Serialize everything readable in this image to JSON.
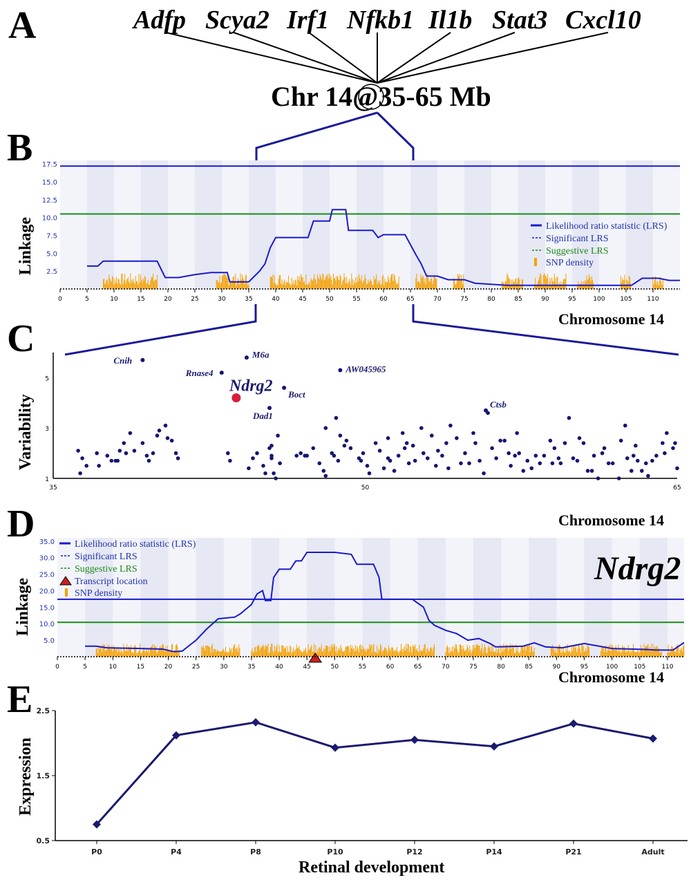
{
  "panel_letters": [
    "A",
    "B",
    "C",
    "D",
    "E"
  ],
  "top_genes": [
    "Adfp",
    "Scya2",
    "Irf1",
    "Nfkb1",
    "Il1b",
    "Stat3",
    "Cxcl10"
  ],
  "locus_label": "Chr 14@35-65 Mb",
  "colors": {
    "lrs_line": "#1a1acc",
    "significant": "#1a1acc",
    "suggestive": "#1a8a1a",
    "snp": "#f5a000",
    "band_dark": "#e6e8f4",
    "band_light": "#f3f4fa",
    "dots": "#151570",
    "highlight": "#d81e3c",
    "expression": "#1a1a70"
  },
  "chart_data": [
    {
      "type": "line",
      "panel": "B",
      "ylabel": "Linkage",
      "xlabel": "Chromosome 14",
      "xlim": [
        0,
        115
      ],
      "ylim": [
        0,
        18
      ],
      "x_ticks": [
        0,
        5,
        10,
        15,
        20,
        25,
        30,
        35,
        40,
        45,
        50,
        55,
        60,
        65,
        70,
        75,
        80,
        85,
        90,
        95,
        100,
        105,
        110
      ],
      "y_ticks": [
        "2.5",
        "5.0",
        "7.5",
        "10.0",
        "12.5",
        "15.0",
        "17.5"
      ],
      "significant_lrs": 17.2,
      "suggestive_lrs": 10.5,
      "legend": [
        "Likelihood ratio statistic (LRS)",
        "Significant LRS",
        "Suggestive LRS",
        "SNP density"
      ],
      "lrs_points": [
        [
          5,
          3.2
        ],
        [
          7,
          3.2
        ],
        [
          8,
          3.9
        ],
        [
          18,
          3.9
        ],
        [
          19.5,
          1.6
        ],
        [
          22,
          1.6
        ],
        [
          25,
          2
        ],
        [
          28,
          2.3
        ],
        [
          31,
          2.3
        ],
        [
          31.5,
          1
        ],
        [
          35,
          1
        ],
        [
          37,
          2.5
        ],
        [
          38,
          3.5
        ],
        [
          39,
          5.8
        ],
        [
          40,
          7.2
        ],
        [
          46,
          7.2
        ],
        [
          47,
          9.5
        ],
        [
          50,
          9.5
        ],
        [
          50.5,
          11.1
        ],
        [
          53,
          11.1
        ],
        [
          53.5,
          8.2
        ],
        [
          58,
          8.2
        ],
        [
          59,
          7.2
        ],
        [
          60,
          7.6
        ],
        [
          64,
          7.6
        ],
        [
          66,
          4.8
        ],
        [
          67,
          3.5
        ],
        [
          68,
          1.8
        ],
        [
          70,
          1.8
        ],
        [
          72,
          1.3
        ],
        [
          75,
          1.3
        ],
        [
          77,
          0.8
        ],
        [
          83,
          0.5
        ],
        [
          90,
          0.5
        ],
        [
          100,
          0.5
        ],
        [
          106,
          0.5
        ],
        [
          108,
          1.5
        ],
        [
          111,
          1.5
        ],
        [
          113,
          1.2
        ],
        [
          115,
          1.2
        ]
      ],
      "snp_blocks": [
        [
          8,
          18
        ],
        [
          29,
          35
        ],
        [
          39,
          63
        ],
        [
          66,
          70
        ],
        [
          73,
          75
        ],
        [
          82,
          86
        ],
        [
          88,
          94
        ],
        [
          96,
          99
        ],
        [
          104,
          106
        ],
        [
          110,
          112
        ]
      ]
    },
    {
      "type": "scatter",
      "panel": "C",
      "ylabel": "Variability",
      "xlabel": "Chromosome 14",
      "xlim": [
        35,
        65
      ],
      "ylim": [
        1,
        6
      ],
      "x_ticks": [
        "35",
        "50",
        "65"
      ],
      "y_ticks": [
        "1",
        "3",
        "5"
      ],
      "labeled_points": [
        {
          "name": "Cnih",
          "x": 39.3,
          "y": 5.7
        },
        {
          "name": "M6a",
          "x": 44.3,
          "y": 5.8
        },
        {
          "name": "Rnase4",
          "x": 43.1,
          "y": 5.2
        },
        {
          "name": "AW045965",
          "x": 48.8,
          "y": 5.3
        },
        {
          "name": "Ndrg2",
          "x": 43.8,
          "y": 4.2
        },
        {
          "name": "Boct",
          "x": 46.1,
          "y": 4.6
        },
        {
          "name": "Dad1",
          "x": 45.4,
          "y": 3.8
        },
        {
          "name": "Ctsb",
          "x": 55.8,
          "y": 3.7
        }
      ],
      "highlighted": "Ndrg2",
      "points": [
        [
          36.2,
          2.1
        ],
        [
          36.4,
          1.8
        ],
        [
          36.6,
          1.5
        ],
        [
          36.3,
          1.2
        ],
        [
          37.1,
          2.0
        ],
        [
          37.2,
          1.5
        ],
        [
          37.6,
          1.9
        ],
        [
          37.8,
          1.7
        ],
        [
          38.0,
          1.7
        ],
        [
          38.2,
          2.1
        ],
        [
          38.4,
          2.4
        ],
        [
          38.5,
          2.0
        ],
        [
          38.7,
          2.8
        ],
        [
          38.1,
          1.7
        ],
        [
          38.9,
          2.1
        ],
        [
          39.3,
          2.4
        ],
        [
          39.5,
          1.9
        ],
        [
          39.6,
          1.7
        ],
        [
          39.8,
          2.0
        ],
        [
          40.0,
          2.7
        ],
        [
          40.1,
          2.9
        ],
        [
          40.4,
          3.1
        ],
        [
          40.5,
          2.6
        ],
        [
          40.7,
          2.5
        ],
        [
          40.9,
          2.0
        ],
        [
          41.0,
          1.8
        ],
        [
          43.4,
          2.0
        ],
        [
          43.5,
          1.7
        ],
        [
          44.4,
          1.4
        ],
        [
          44.6,
          1.8
        ],
        [
          44.8,
          2.0
        ],
        [
          45.1,
          1.5
        ],
        [
          45.2,
          1.2
        ],
        [
          45.4,
          2.2
        ],
        [
          45.5,
          1.9
        ],
        [
          45.5,
          2.3
        ],
        [
          45.5,
          1.8
        ],
        [
          45.6,
          1.2
        ],
        [
          45.7,
          1.0
        ],
        [
          45.8,
          2.7
        ],
        [
          45.9,
          1.6
        ],
        [
          46.7,
          1.9
        ],
        [
          46.9,
          2.0
        ],
        [
          47.1,
          1.9
        ],
        [
          47.2,
          1.9
        ],
        [
          47.5,
          2.2
        ],
        [
          47.8,
          1.6
        ],
        [
          48.0,
          1.3
        ],
        [
          48.1,
          1.1
        ],
        [
          48.1,
          3.0
        ],
        [
          48.4,
          2.0
        ],
        [
          48.5,
          1.9
        ],
        [
          48.6,
          3.4
        ],
        [
          48.7,
          1.7
        ],
        [
          48.8,
          2.7
        ],
        [
          49.0,
          2.3
        ],
        [
          49.1,
          2.5
        ],
        [
          49.3,
          2.2
        ],
        [
          49.7,
          1.8
        ],
        [
          49.8,
          1.7
        ],
        [
          49.9,
          2.0
        ],
        [
          50.1,
          1.5
        ],
        [
          50.2,
          1.2
        ],
        [
          50.5,
          2.4
        ],
        [
          50.7,
          2.1
        ],
        [
          50.9,
          1.4
        ],
        [
          51.1,
          1.8
        ],
        [
          51.1,
          2.6
        ],
        [
          51.2,
          1.7
        ],
        [
          51.4,
          1.3
        ],
        [
          51.6,
          1.9
        ],
        [
          51.8,
          2.8
        ],
        [
          51.9,
          2.2
        ],
        [
          52.0,
          2.4
        ],
        [
          52.1,
          1.6
        ],
        [
          52.3,
          2.3
        ],
        [
          52.4,
          1.7
        ],
        [
          52.7,
          3.0
        ],
        [
          52.8,
          2.0
        ],
        [
          53.0,
          1.8
        ],
        [
          53.2,
          2.7
        ],
        [
          53.4,
          1.5
        ],
        [
          53.5,
          2.1
        ],
        [
          53.7,
          1.9
        ],
        [
          53.9,
          2.4
        ],
        [
          54.0,
          1.4
        ],
        [
          54.1,
          3.1
        ],
        [
          54.4,
          2.6
        ],
        [
          54.6,
          1.6
        ],
        [
          54.8,
          2.0
        ],
        [
          55.0,
          1.6
        ],
        [
          55.2,
          2.8
        ],
        [
          55.3,
          2.4
        ],
        [
          55.5,
          1.7
        ],
        [
          55.7,
          1.2
        ],
        [
          55.9,
          3.6
        ],
        [
          56.1,
          2.2
        ],
        [
          56.3,
          1.8
        ],
        [
          56.5,
          2.5
        ],
        [
          56.7,
          2.5
        ],
        [
          56.9,
          2.0
        ],
        [
          57.0,
          1.5
        ],
        [
          57.2,
          1.9
        ],
        [
          57.3,
          2.8
        ],
        [
          57.4,
          2.0
        ],
        [
          57.6,
          1.3
        ],
        [
          57.8,
          1.7
        ],
        [
          58.0,
          1.4
        ],
        [
          58.2,
          1.9
        ],
        [
          58.4,
          1.6
        ],
        [
          58.6,
          1.9
        ],
        [
          58.9,
          2.5
        ],
        [
          59.0,
          1.6
        ],
        [
          59.1,
          2.2
        ],
        [
          59.3,
          1.8
        ],
        [
          59.4,
          1.6
        ],
        [
          59.6,
          2.4
        ],
        [
          59.8,
          3.4
        ],
        [
          60.0,
          1.8
        ],
        [
          60.2,
          1.7
        ],
        [
          60.3,
          2.6
        ],
        [
          60.5,
          2.4
        ],
        [
          60.7,
          1.3
        ],
        [
          60.9,
          1.3
        ],
        [
          61.0,
          1.9
        ],
        [
          61.2,
          1.0
        ],
        [
          61.4,
          2.0
        ],
        [
          61.5,
          2.2
        ],
        [
          61.7,
          1.6
        ],
        [
          61.9,
          1.6
        ],
        [
          62.2,
          1.0
        ],
        [
          62.3,
          2.5
        ],
        [
          62.5,
          3.1
        ],
        [
          62.6,
          1.8
        ],
        [
          62.8,
          1.3
        ],
        [
          62.9,
          1.9
        ],
        [
          63.0,
          2.3
        ],
        [
          63.1,
          1.7
        ],
        [
          63.3,
          1.3
        ],
        [
          63.5,
          1.6
        ],
        [
          63.6,
          1.1
        ],
        [
          63.8,
          1.7
        ],
        [
          64.0,
          1.9
        ],
        [
          64.3,
          2.4
        ],
        [
          64.4,
          2.0
        ],
        [
          64.5,
          2.8
        ],
        [
          64.8,
          2.2
        ],
        [
          64.9,
          2.4
        ],
        [
          65.0,
          1.4
        ]
      ]
    },
    {
      "type": "line",
      "panel": "D",
      "title": "Ndrg2",
      "ylabel": "Linkage",
      "xlabel": "Chromosome 14",
      "xlim": [
        0,
        113
      ],
      "ylim": [
        0,
        36
      ],
      "x_ticks": [
        0,
        5,
        10,
        15,
        20,
        25,
        30,
        35,
        40,
        45,
        50,
        55,
        60,
        65,
        70,
        75,
        80,
        85,
        90,
        95,
        100,
        105,
        110
      ],
      "y_ticks": [
        "5.0",
        "10.0",
        "15.0",
        "20.0",
        "25.0",
        "30.0",
        "35.0"
      ],
      "significant_lrs": 17.4,
      "suggestive_lrs": 10.4,
      "transcript_location": 46.5,
      "legend": [
        "Likelihood ratio statistic (LRS)",
        "Significant LRS",
        "Suggestive LRS",
        "Transcript location",
        "SNP density"
      ],
      "lrs_points": [
        [
          5,
          3.2
        ],
        [
          7,
          3.2
        ],
        [
          9,
          2.7
        ],
        [
          15,
          2.5
        ],
        [
          19,
          2.3
        ],
        [
          21,
          1.5
        ],
        [
          22.5,
          1.7
        ],
        [
          25,
          5
        ],
        [
          27,
          8.5
        ],
        [
          29,
          11.5
        ],
        [
          32,
          12
        ],
        [
          33,
          13
        ],
        [
          35,
          15.8
        ],
        [
          36,
          19
        ],
        [
          37,
          20
        ],
        [
          37.5,
          17
        ],
        [
          38.5,
          17
        ],
        [
          39,
          24
        ],
        [
          40,
          26.5
        ],
        [
          42,
          26.5
        ],
        [
          43,
          29
        ],
        [
          44,
          29
        ],
        [
          45,
          31.6
        ],
        [
          50,
          31.6
        ],
        [
          53,
          31
        ],
        [
          54,
          28
        ],
        [
          57,
          28
        ],
        [
          58,
          24
        ],
        [
          58.5,
          17.4
        ],
        [
          64,
          17.4
        ],
        [
          66,
          15
        ],
        [
          67,
          11
        ],
        [
          68,
          9.5
        ],
        [
          70,
          8
        ],
        [
          72,
          7
        ],
        [
          74,
          5
        ],
        [
          76,
          5.5
        ],
        [
          78,
          4
        ],
        [
          79,
          3
        ],
        [
          84,
          3.2
        ],
        [
          86,
          4.2
        ],
        [
          88,
          3
        ],
        [
          91,
          2.7
        ],
        [
          95,
          4
        ],
        [
          100,
          2.5
        ],
        [
          106,
          2.2
        ],
        [
          108,
          2
        ],
        [
          111,
          2
        ],
        [
          113,
          4.3
        ]
      ],
      "snp_blocks": [
        [
          7,
          22
        ],
        [
          26,
          33
        ],
        [
          35,
          40
        ],
        [
          40,
          68
        ],
        [
          70,
          86
        ],
        [
          89,
          96
        ],
        [
          98,
          109
        ],
        [
          110,
          113
        ]
      ]
    },
    {
      "type": "line",
      "panel": "E",
      "xlabel": "Retinal development",
      "ylabel": "Expression",
      "categories": [
        "P0",
        "P4",
        "P8",
        "P10",
        "P12",
        "P14",
        "P21",
        "Adult"
      ],
      "values": [
        0.75,
        2.12,
        2.32,
        1.93,
        2.05,
        1.95,
        2.3,
        2.07
      ],
      "y_ticks": [
        "0.5",
        "1.5",
        "2.5"
      ],
      "ylim": [
        0.5,
        2.5
      ]
    }
  ]
}
